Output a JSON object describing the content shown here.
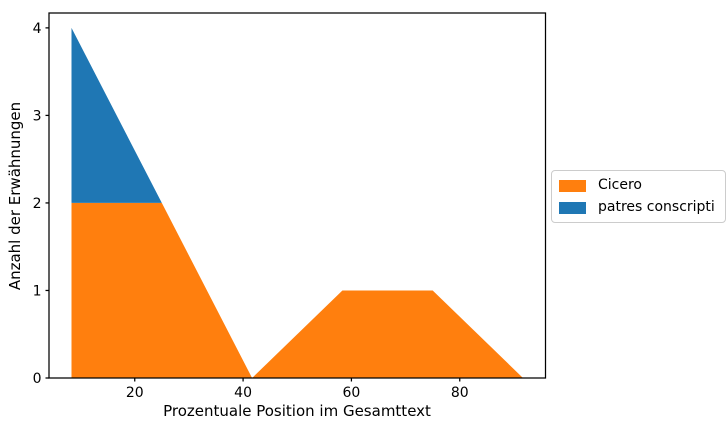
{
  "figure": {
    "background": "#ffffff",
    "text_color": "#000000",
    "spine_color": "#000000"
  },
  "chart_data": {
    "type": "area",
    "stacked": true,
    "xlabel": "Prozentuale Position im Gesamttext",
    "ylabel": "Anzahl der Erwähnungen",
    "x": [
      8.33,
      25,
      41.67,
      58.33,
      75,
      91.67
    ],
    "series": [
      {
        "name": "Cicero",
        "color": "#ff7f0e",
        "values": [
          2,
          2,
          0,
          1,
          1,
          0
        ]
      },
      {
        "name": "patres conscripti",
        "color": "#1f77b4",
        "values": [
          2,
          0,
          0,
          0,
          0,
          0
        ]
      }
    ],
    "xlim": [
      4.17,
      95.83
    ],
    "ylim": [
      0,
      4.17
    ],
    "xticks": [
      20,
      40,
      60,
      80
    ],
    "yticks": [
      0,
      1,
      2,
      3,
      4
    ],
    "grid": false,
    "legend": {
      "position": "center-right-outside",
      "entries": [
        "Cicero",
        "patres conscripti"
      ]
    }
  }
}
